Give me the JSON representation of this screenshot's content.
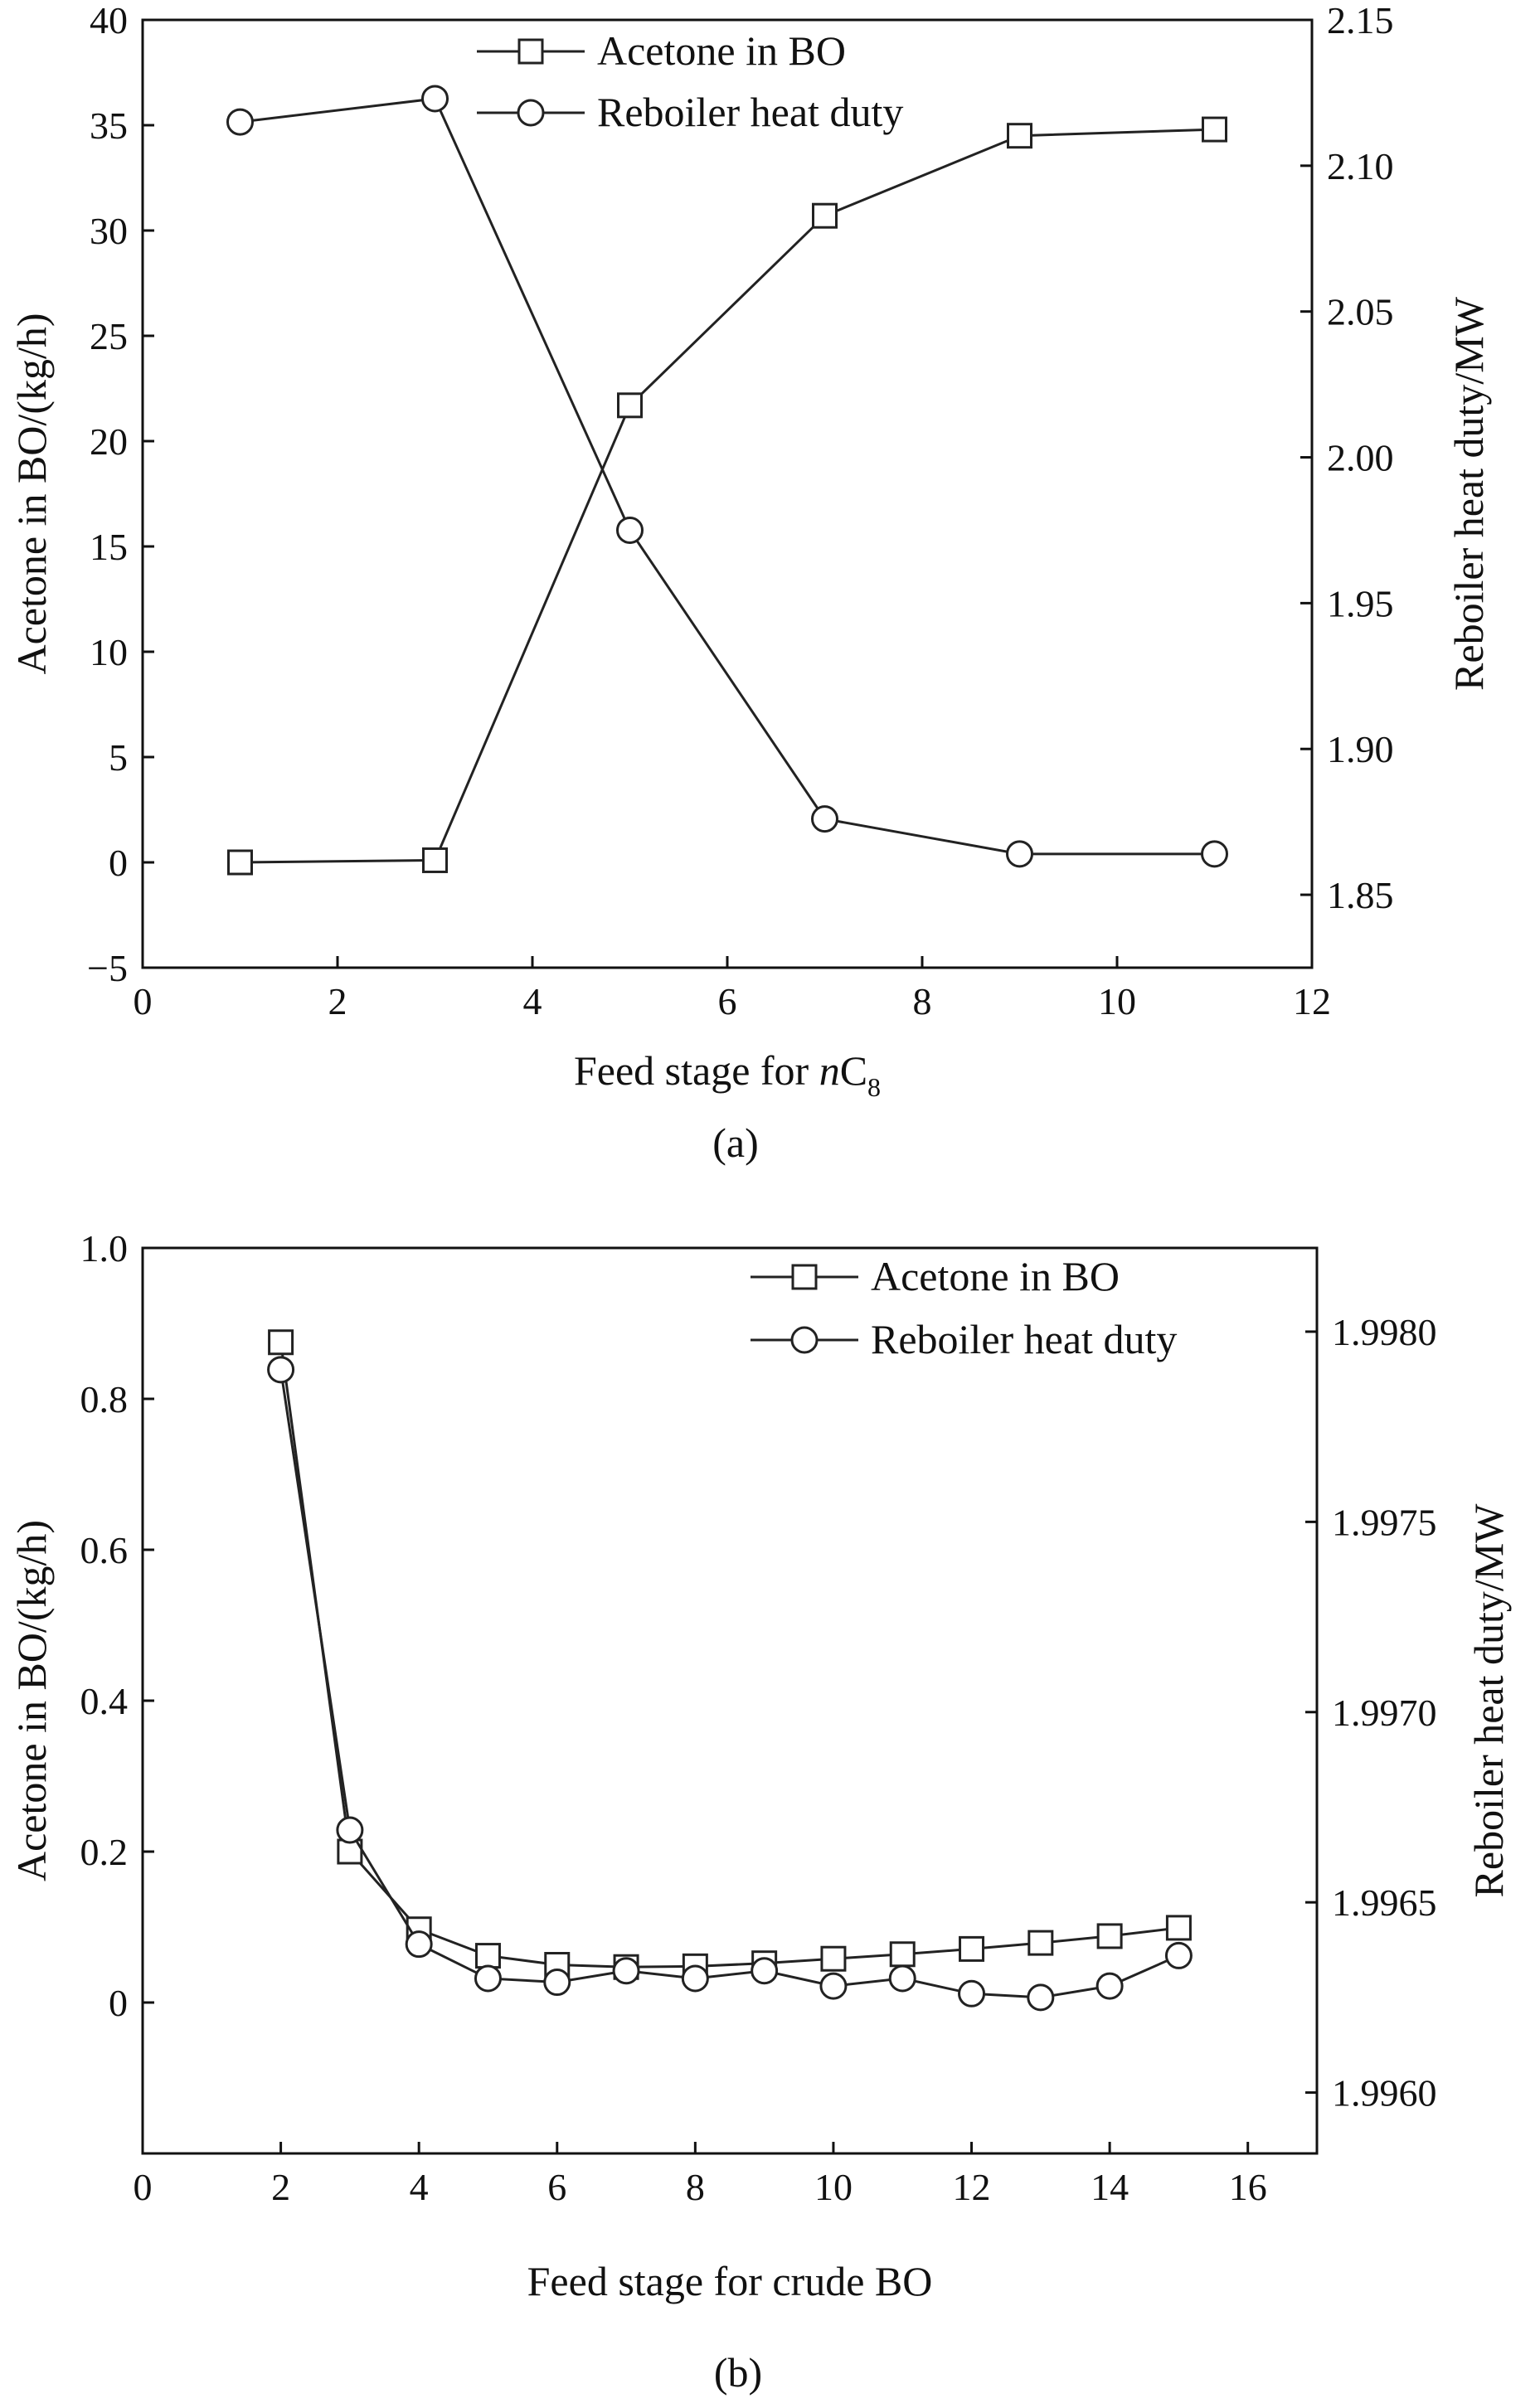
{
  "figure": {
    "colors": {
      "line": "#222222",
      "marker_fill": "#ffffff",
      "axis": "#111111"
    }
  },
  "chart_data": [
    {
      "type": "line",
      "caption": "(a)",
      "xlabel": "Feed stage for nC8",
      "xlabel_parts": {
        "prefix": "Feed stage for ",
        "italic": "n",
        "base": "C",
        "sub": "8"
      },
      "ylabel_left": "Acetone in BO/(kg/h)",
      "ylabel_right": "Reboiler heat duty/MW",
      "xlim": [
        0,
        12
      ],
      "xticks": [
        0,
        2,
        4,
        6,
        8,
        10,
        12
      ],
      "ylim_left": [
        -5,
        40
      ],
      "yticks_left": [
        -5,
        0,
        5,
        10,
        15,
        20,
        25,
        30,
        35,
        40
      ],
      "ylim_right": [
        1.825,
        2.15
      ],
      "yticks_right": [
        1.85,
        1.9,
        1.95,
        2.0,
        2.05,
        2.1,
        2.15
      ],
      "legend_position": "top-center",
      "series": [
        {
          "name": "Acetone in BO",
          "marker": "square",
          "axis": "left",
          "x": [
            1,
            3,
            5,
            7,
            9,
            11
          ],
          "y": [
            0.0,
            0.1,
            21.7,
            30.7,
            34.5,
            34.8
          ]
        },
        {
          "name": "Reboiler heat duty",
          "marker": "circle",
          "axis": "right",
          "x": [
            1,
            3,
            5,
            7,
            9,
            11
          ],
          "y": [
            2.115,
            2.123,
            1.975,
            1.876,
            1.864,
            1.864
          ]
        }
      ]
    },
    {
      "type": "line",
      "caption": "(b)",
      "xlabel": "Feed stage for crude BO",
      "ylabel_left": "Acetone in BO/(kg/h)",
      "ylabel_right": "Reboiler heat duty/MW",
      "xlim": [
        0,
        17
      ],
      "xticks": [
        0,
        2,
        4,
        6,
        8,
        10,
        12,
        14,
        16
      ],
      "ylim_left": [
        -0.2,
        1.0
      ],
      "yticks_left": [
        0,
        0.2,
        0.4,
        0.6,
        0.8,
        1.0
      ],
      "ylim_right": [
        1.99584,
        1.99822
      ],
      "yticks_right": [
        1.996,
        1.9965,
        1.997,
        1.9975,
        1.998
      ],
      "legend_position": "top-right",
      "series": [
        {
          "name": "Acetone in BO",
          "marker": "square",
          "axis": "left",
          "x": [
            2,
            3,
            4,
            5,
            6,
            7,
            8,
            9,
            10,
            11,
            12,
            13,
            14,
            15
          ],
          "y": [
            0.875,
            0.2,
            0.097,
            0.062,
            0.05,
            0.047,
            0.048,
            0.052,
            0.058,
            0.064,
            0.071,
            0.079,
            0.088,
            0.099
          ]
        },
        {
          "name": "Reboiler heat duty",
          "marker": "circle",
          "axis": "right",
          "x": [
            2,
            3,
            4,
            5,
            6,
            7,
            8,
            9,
            10,
            11,
            12,
            13,
            14,
            15
          ],
          "y": [
            1.9979,
            1.99669,
            1.99639,
            1.9963,
            1.99629,
            1.99632,
            1.9963,
            1.99632,
            1.99628,
            1.9963,
            1.99626,
            1.99625,
            1.99628,
            1.99636
          ]
        }
      ]
    }
  ]
}
